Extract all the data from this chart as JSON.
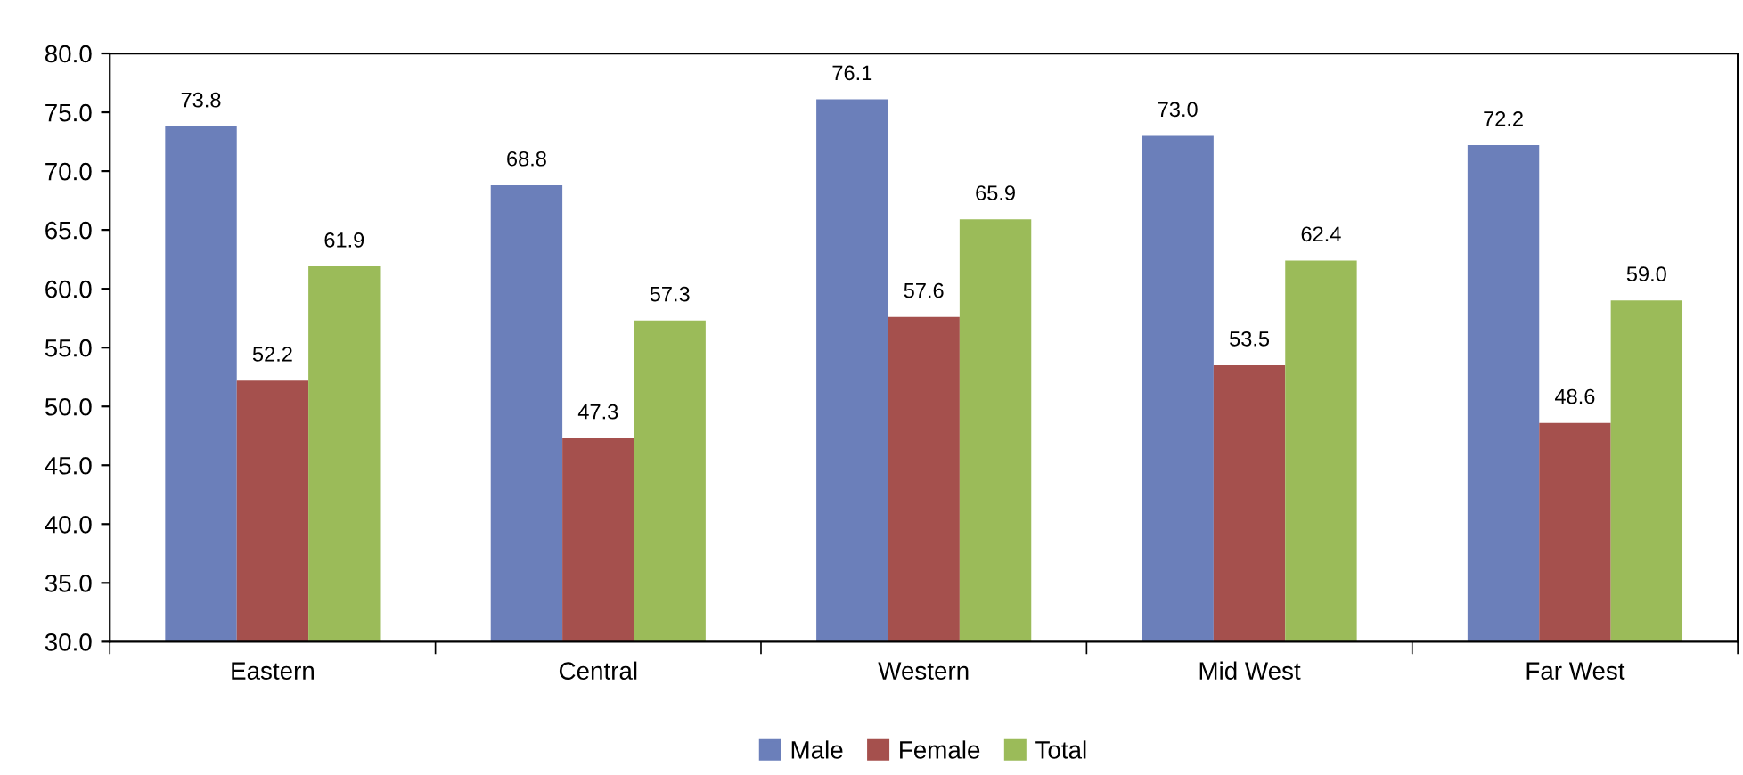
{
  "chart_data": {
    "type": "bar",
    "categories": [
      "Eastern",
      "Central",
      "Western",
      "Mid West",
      "Far West"
    ],
    "series": [
      {
        "name": "Male",
        "color": "#6b7fba",
        "values": [
          73.8,
          68.8,
          76.1,
          73.0,
          72.2
        ],
        "value_labels": [
          "73.8",
          "68.8",
          "76.1",
          "73.0",
          "72.2"
        ]
      },
      {
        "name": "Female",
        "color": "#a5504d",
        "values": [
          52.2,
          47.3,
          57.6,
          53.5,
          48.6
        ],
        "value_labels": [
          "52.2",
          "47.3",
          "57.6",
          "53.5",
          "48.6"
        ]
      },
      {
        "name": "Total",
        "color": "#9bbb59",
        "values": [
          61.9,
          57.3,
          65.9,
          62.4,
          59.0
        ],
        "value_labels": [
          "61.9",
          "57.3",
          "65.9",
          "62.4",
          "59.0"
        ]
      }
    ],
    "ylim": [
      30,
      80
    ],
    "yticks": [
      {
        "value": 30,
        "label": "30.0"
      },
      {
        "value": 35,
        "label": "35.0"
      },
      {
        "value": 40,
        "label": "40.0"
      },
      {
        "value": 45,
        "label": "45.0"
      },
      {
        "value": 50,
        "label": "50.0"
      },
      {
        "value": 55,
        "label": "55.0"
      },
      {
        "value": 60,
        "label": "60.0"
      },
      {
        "value": 65,
        "label": "65.0"
      },
      {
        "value": 70,
        "label": "70.0"
      },
      {
        "value": 75,
        "label": "75.0"
      },
      {
        "value": 80,
        "label": "80.0"
      }
    ],
    "grid": false,
    "legend": "bottom"
  }
}
